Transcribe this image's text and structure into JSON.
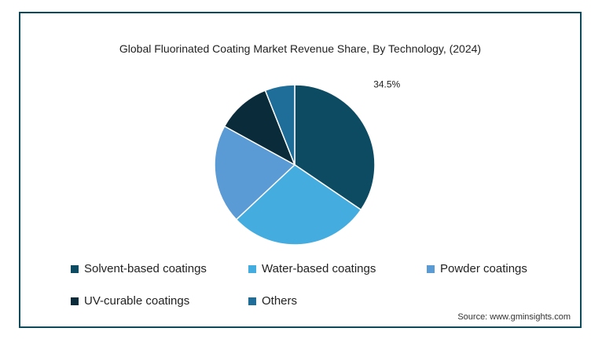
{
  "chart_data": {
    "type": "pie",
    "title": "Global Fluorinated Coating Market Revenue Share, By Technology,  (2024)",
    "series": [
      {
        "name": "Solvent-based coatings",
        "value": 34.5,
        "color": "#0d4b63",
        "label": "34.5%"
      },
      {
        "name": "Water-based coatings",
        "value": 28.5,
        "color": "#45ace0",
        "label": ""
      },
      {
        "name": "Powder coatings",
        "value": 20.0,
        "color": "#5b9bd5",
        "label": ""
      },
      {
        "name": "UV-curable coatings",
        "value": 11.0,
        "color": "#0a2b3a",
        "label": ""
      },
      {
        "name": "Others",
        "value": 6.0,
        "color": "#1e6e99",
        "label": ""
      }
    ],
    "legend_position": "bottom"
  },
  "source": "Source: www.gminsights.com"
}
